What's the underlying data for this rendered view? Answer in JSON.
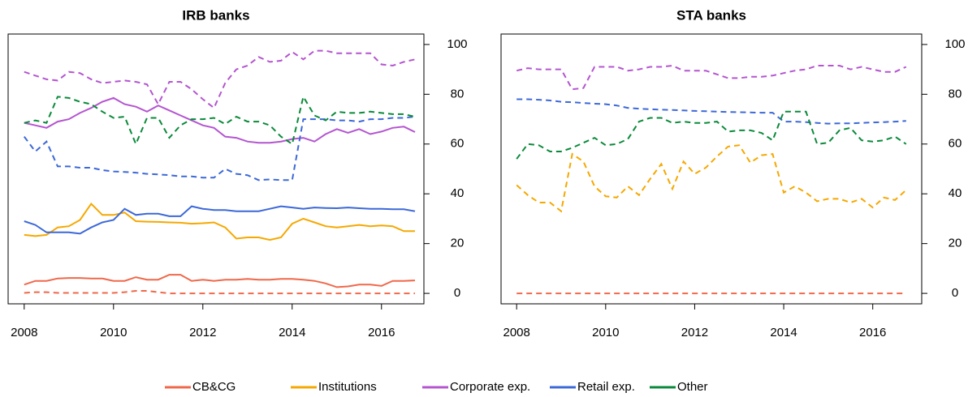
{
  "chart_data": [
    {
      "type": "line",
      "title": "IRB banks",
      "x": [
        2008,
        2008.25,
        2008.5,
        2008.75,
        2009,
        2009.25,
        2009.5,
        2009.75,
        2010,
        2010.25,
        2010.5,
        2010.75,
        2011,
        2011.25,
        2011.5,
        2011.75,
        2012,
        2012.25,
        2012.5,
        2012.75,
        2013,
        2013.25,
        2013.5,
        2013.75,
        2014,
        2014.25,
        2014.5,
        2014.75,
        2015,
        2015.25,
        2015.5,
        2015.75,
        2016,
        2016.25,
        2016.5,
        2016.75
      ],
      "xlim": [
        2007.64,
        2016.95
      ],
      "xticks": [
        2008,
        2010,
        2012,
        2014,
        2016
      ],
      "ylim": [
        -4.2,
        104.2
      ],
      "yticks": [
        0,
        20,
        40,
        60,
        80,
        100
      ],
      "series": [
        {
          "color": "#f0684a",
          "dashed": false,
          "values": [
            3.5,
            5,
            5,
            6,
            6.2,
            6.2,
            6,
            6,
            5,
            5,
            6.5,
            5.5,
            5.5,
            7.5,
            7.5,
            5,
            5.5,
            5,
            5.5,
            5.5,
            5.8,
            5.5,
            5.5,
            5.8,
            5.8,
            5.5,
            5,
            4,
            2.5,
            2.8,
            3.5,
            3.5,
            3,
            5,
            5,
            5.2
          ]
        },
        {
          "color": "#f5a800",
          "dashed": false,
          "values": [
            23.5,
            23,
            23.5,
            26.5,
            27,
            29.5,
            36,
            31.5,
            31.5,
            32.5,
            29,
            28.8,
            28.7,
            28.5,
            28.4,
            28,
            28.2,
            28.5,
            26.5,
            22,
            22.5,
            22.5,
            21.5,
            22.5,
            28,
            30,
            28.5,
            27,
            26.5,
            27,
            27.5,
            27,
            27.3,
            27,
            25,
            25
          ]
        },
        {
          "color": "#b455d0",
          "dashed": false,
          "values": [
            68.5,
            67.5,
            66.5,
            69,
            70,
            72.5,
            74.5,
            77,
            78.5,
            76,
            75,
            73,
            75.5,
            73.5,
            71.5,
            69.5,
            67.5,
            66.5,
            63,
            62.5,
            61,
            60.5,
            60.5,
            61,
            62,
            62.5,
            61,
            64,
            66,
            64.5,
            66,
            64,
            65,
            66.5,
            67,
            64.8
          ]
        },
        {
          "color": "#3c68d8",
          "dashed": false,
          "values": [
            29,
            27.5,
            24.5,
            24.5,
            24.5,
            24,
            26.5,
            28.5,
            29.5,
            34,
            31.5,
            32,
            32,
            31,
            31,
            35,
            34,
            33.5,
            33.5,
            33,
            33,
            33,
            34,
            35,
            34.5,
            34,
            34.5,
            34.3,
            34.2,
            34.5,
            34.2,
            34,
            34,
            33.8,
            33.8,
            33
          ]
        },
        {
          "color": "#f0684a",
          "dashed": true,
          "values": [
            0.2,
            0.5,
            0.5,
            0.2,
            0.2,
            0.2,
            0.2,
            0.2,
            0.2,
            0.5,
            1,
            1,
            0.5,
            0,
            0,
            0,
            0,
            0,
            0,
            0,
            0,
            0,
            0,
            0,
            0,
            0,
            0,
            0,
            0,
            0,
            0,
            0,
            0,
            0,
            0,
            0
          ]
        },
        {
          "color": "#b455d0",
          "dashed": true,
          "values": [
            89,
            87.5,
            86,
            85.5,
            89,
            88.5,
            86,
            84.5,
            85,
            85.5,
            85,
            84,
            76,
            85,
            85,
            82,
            78,
            74.5,
            84.5,
            90,
            91.5,
            95,
            93,
            93.5,
            97,
            94,
            97.5,
            97.5,
            96.5,
            96.5,
            96.5,
            96.5,
            92,
            91.5,
            93,
            94
          ]
        },
        {
          "color": "#3c68d8",
          "dashed": true,
          "values": [
            63,
            57,
            61,
            51,
            51,
            50.5,
            50.5,
            49.5,
            49,
            48.8,
            48.5,
            48,
            47.8,
            47.5,
            47,
            47,
            46.5,
            46.5,
            50,
            48,
            47.5,
            45.5,
            45.8,
            45.5,
            45.5,
            70,
            70,
            70,
            69.5,
            69.5,
            69,
            70,
            70,
            70.5,
            70.5,
            71
          ]
        },
        {
          "color": "#0a8a3a",
          "dashed": true,
          "values": [
            68.5,
            69.5,
            68.5,
            79,
            78.5,
            77,
            76,
            73,
            70.5,
            71,
            60,
            70.5,
            70.5,
            62.5,
            67.5,
            70,
            70,
            70.5,
            68,
            71,
            69,
            69,
            67.5,
            63,
            60,
            79,
            71.5,
            69.5,
            73,
            72.5,
            72.5,
            73,
            72.5,
            72,
            72,
            71
          ]
        }
      ]
    },
    {
      "type": "line",
      "title": "STA banks",
      "x": [
        2008,
        2008.25,
        2008.5,
        2008.75,
        2009,
        2009.25,
        2009.5,
        2009.75,
        2010,
        2010.25,
        2010.5,
        2010.75,
        2011,
        2011.25,
        2011.5,
        2011.75,
        2012,
        2012.25,
        2012.5,
        2012.75,
        2013,
        2013.25,
        2013.5,
        2013.75,
        2014,
        2014.25,
        2014.5,
        2014.75,
        2015,
        2015.25,
        2015.5,
        2015.75,
        2016,
        2016.25,
        2016.5,
        2016.75
      ],
      "xlim": [
        2007.65,
        2017.1
      ],
      "xticks": [
        2008,
        2010,
        2012,
        2014,
        2016
      ],
      "ylim": [
        -4.2,
        104.2
      ],
      "yticks": [
        0,
        20,
        40,
        60,
        80,
        100
      ],
      "series": [
        {
          "color": "#f0684a",
          "dashed": true,
          "values": [
            0,
            0,
            0,
            0,
            0,
            0,
            0,
            0,
            0,
            0,
            0,
            0,
            0,
            0,
            0,
            0,
            0,
            0,
            0,
            0,
            0,
            0,
            0,
            0,
            0,
            0,
            0,
            0,
            0,
            0,
            0,
            0,
            0,
            0,
            0,
            0
          ]
        },
        {
          "color": "#f5a800",
          "dashed": true,
          "values": [
            43.5,
            39.5,
            36.5,
            36.5,
            33,
            56,
            53,
            43,
            39,
            38.5,
            43,
            39.5,
            46,
            52,
            42,
            53,
            48,
            50.5,
            55,
            59,
            59.5,
            52.5,
            55.5,
            56,
            40.5,
            43,
            40.5,
            37,
            38,
            38,
            36.5,
            38,
            34.5,
            38.5,
            37.5,
            41.5
          ]
        },
        {
          "color": "#b455d0",
          "dashed": true,
          "values": [
            89.5,
            90.5,
            90,
            90,
            90,
            82,
            82.5,
            91,
            91,
            91,
            89.5,
            90,
            91,
            91,
            91.5,
            89.5,
            89.5,
            89.5,
            88,
            86.5,
            86.5,
            87,
            87,
            87.5,
            88.5,
            89.5,
            90,
            91.5,
            91.5,
            91.5,
            90,
            91,
            90,
            89,
            89,
            91
          ]
        },
        {
          "color": "#3c68d8",
          "dashed": true,
          "values": [
            78,
            78,
            77.8,
            77.5,
            77,
            76.8,
            76.5,
            76.2,
            76,
            75.5,
            74.5,
            74.2,
            74,
            73.8,
            73.7,
            73.5,
            73.3,
            73.2,
            73,
            72.9,
            72.8,
            72.7,
            72.6,
            72.6,
            69,
            69,
            68.8,
            68.5,
            68.2,
            68.3,
            68.3,
            68.5,
            68.7,
            68.8,
            69,
            69.3
          ]
        },
        {
          "color": "#0a8a3a",
          "dashed": true,
          "values": [
            54,
            60,
            59.5,
            57,
            57,
            58.5,
            60.5,
            62.5,
            59.5,
            60,
            62,
            69,
            70.5,
            70.5,
            68.5,
            69,
            68.5,
            68.5,
            69,
            65,
            65.5,
            65.5,
            64.5,
            61.5,
            73,
            73,
            73,
            60,
            60.5,
            65.5,
            66.5,
            61.5,
            61,
            61.5,
            63,
            60
          ]
        }
      ]
    }
  ],
  "legend": [
    {
      "name": "CB&CG",
      "color": "#f0684a"
    },
    {
      "name": "Institutions",
      "color": "#f5a800"
    },
    {
      "name": "Corporate exp.",
      "color": "#b455d0"
    },
    {
      "name": "Retail exp.",
      "color": "#3c68d8"
    },
    {
      "name": "Other",
      "color": "#0a8a3a"
    }
  ]
}
